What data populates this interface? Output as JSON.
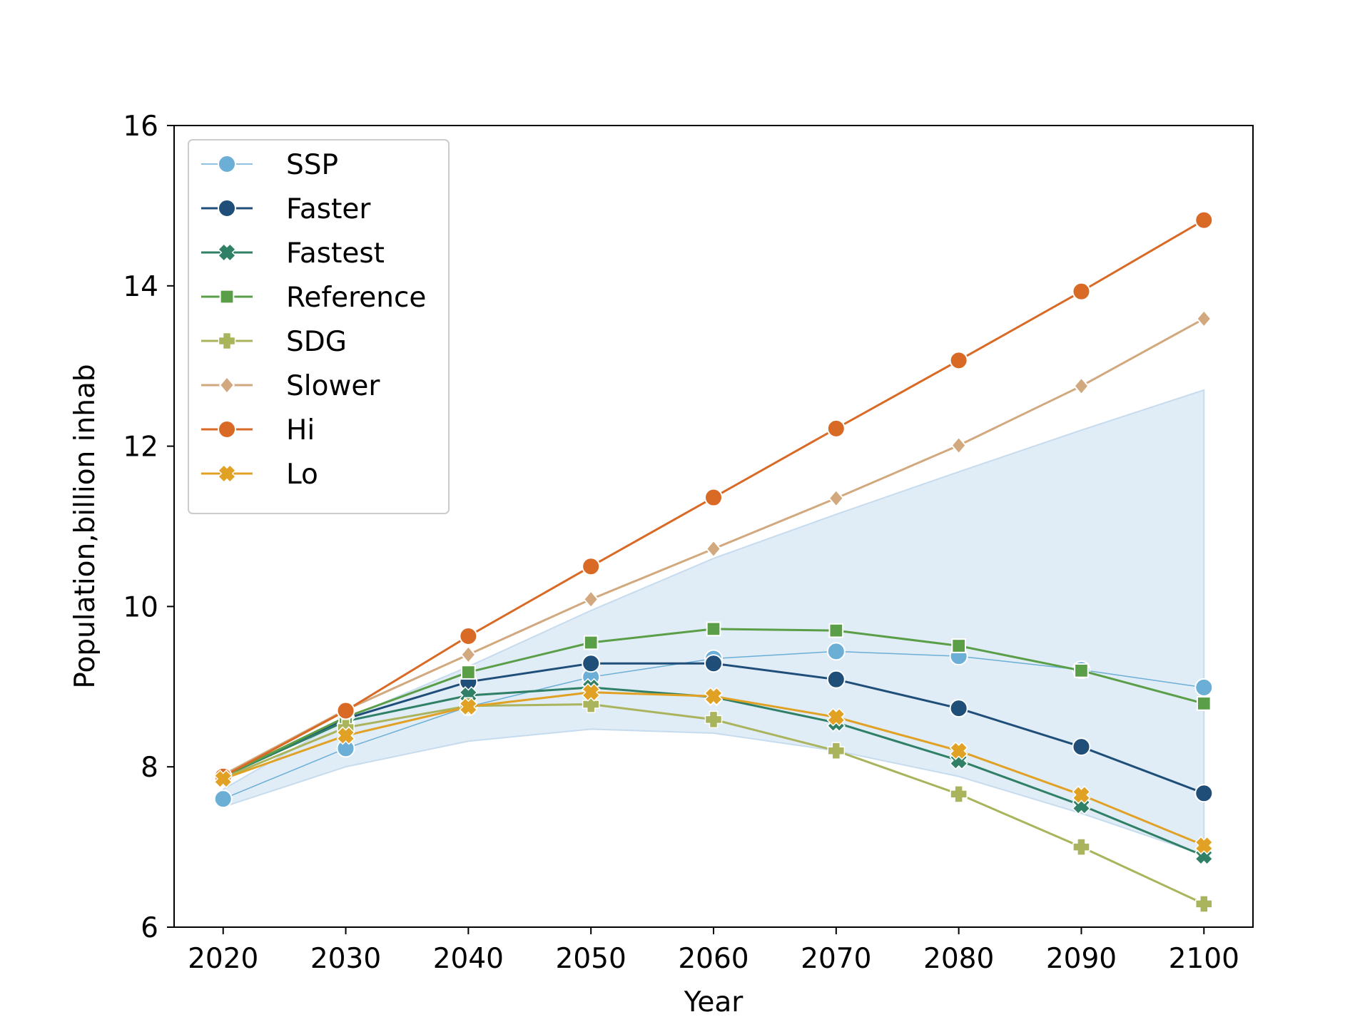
{
  "chart_data": {
    "type": "line",
    "title": "",
    "xlabel": "Year",
    "ylabel": "Population,billion inhab",
    "x": [
      2020,
      2030,
      2040,
      2050,
      2060,
      2070,
      2080,
      2090,
      2100
    ],
    "xlim": [
      2016,
      2104
    ],
    "ylim": [
      6,
      16
    ],
    "xticks": [
      "2020",
      "2030",
      "2040",
      "2050",
      "2060",
      "2070",
      "2080",
      "2090",
      "2100"
    ],
    "yticks": [
      "6",
      "8",
      "10",
      "12",
      "14",
      "16"
    ],
    "grid": false,
    "legend_position": "upper-left",
    "band": {
      "series": "SSP",
      "color": "#c6dcee",
      "lower": [
        7.5,
        8.0,
        8.32,
        8.47,
        8.42,
        8.2,
        7.88,
        7.42,
        6.9
      ],
      "upper": [
        7.72,
        8.6,
        9.25,
        9.95,
        10.6,
        11.15,
        11.68,
        12.2,
        12.7
      ]
    },
    "series": [
      {
        "name": "SSP",
        "color": "#6baed6",
        "marker": "circle",
        "thin": true,
        "values": [
          7.6,
          8.23,
          8.75,
          9.12,
          9.35,
          9.44,
          9.38,
          9.21,
          8.99
        ]
      },
      {
        "name": "Faster",
        "color": "#1f4e79",
        "marker": "circle",
        "values": [
          7.88,
          8.6,
          9.06,
          9.29,
          9.29,
          9.09,
          8.73,
          8.25,
          7.67
        ]
      },
      {
        "name": "Fastest",
        "color": "#2f8066",
        "marker": "x",
        "values": [
          7.88,
          8.57,
          8.89,
          8.99,
          8.87,
          8.55,
          8.08,
          7.52,
          6.89
        ]
      },
      {
        "name": "Reference",
        "color": "#5a9e48",
        "marker": "square",
        "values": [
          7.88,
          8.62,
          9.18,
          9.55,
          9.72,
          9.7,
          9.51,
          9.2,
          8.79
        ]
      },
      {
        "name": "SDG",
        "color": "#a9b45c",
        "marker": "plus",
        "values": [
          7.86,
          8.49,
          8.76,
          8.78,
          8.59,
          8.2,
          7.66,
          7.0,
          6.29
        ]
      },
      {
        "name": "Slower",
        "color": "#d2a97e",
        "marker": "diamond",
        "values": [
          7.9,
          8.71,
          9.4,
          10.09,
          10.72,
          11.35,
          12.01,
          12.75,
          13.59
        ]
      },
      {
        "name": "Hi",
        "color": "#d96a25",
        "marker": "circle",
        "values": [
          7.88,
          8.7,
          9.63,
          10.5,
          11.36,
          12.22,
          13.07,
          13.93,
          14.82
        ]
      },
      {
        "name": "Lo",
        "color": "#e0a124",
        "marker": "x",
        "values": [
          7.85,
          8.39,
          8.75,
          8.93,
          8.88,
          8.62,
          8.2,
          7.65,
          7.02
        ]
      }
    ]
  }
}
